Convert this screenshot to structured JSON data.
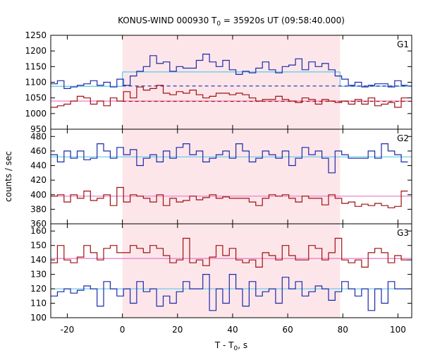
{
  "chart_data": {
    "type": "line",
    "title_main": "KONUS-WIND 000930 T",
    "title_sub": "0",
    "title_rest": " = 35920s UT (09:58:40.000)",
    "xlabel_main": "T - T",
    "xlabel_sub": "0",
    "xlabel_rest": ", s",
    "ylabel": "counts / sec",
    "xlim": [
      -26,
      105
    ],
    "xticks": [
      -20,
      0,
      20,
      40,
      60,
      80,
      100
    ],
    "highlight_interval": [
      0,
      79
    ],
    "colors": {
      "blue": "#1a2aa8",
      "red": "#a01010",
      "cyan": "#5cc8e8",
      "pink": "#e878c8",
      "highlight": "#fde6ea"
    },
    "x_bins": [
      -26,
      -23.6,
      -21.2,
      -18.8,
      -16.4,
      -14,
      -11.6,
      -9.2,
      -6.8,
      -4.4,
      -2,
      0.4,
      2.8,
      5.2,
      7.6,
      10,
      12.4,
      14.8,
      17.2,
      19.6,
      22,
      24.4,
      26.8,
      29.2,
      31.6,
      34,
      36.4,
      38.8,
      41.2,
      43.6,
      46,
      48.4,
      50.8,
      53.2,
      55.6,
      58,
      60.4,
      62.8,
      65.2,
      67.6,
      70,
      72.4,
      74.8,
      77.2,
      79.6,
      82,
      84.4,
      86.8,
      89.2,
      91.6,
      94,
      96.4,
      98.8,
      101.2,
      103.6
    ],
    "panels": [
      {
        "label": "G1",
        "ylim": [
          950,
          1250
        ],
        "yticks": [
          950,
          1000,
          1050,
          1100,
          1150,
          1200,
          1250
        ],
        "series": [
          {
            "color": "blue",
            "values": [
              1095,
              1105,
              1080,
              1085,
              1090,
              1095,
              1105,
              1090,
              1100,
              1085,
              1110,
              1090,
              1120,
              1135,
              1150,
              1185,
              1160,
              1165,
              1135,
              1150,
              1145,
              1145,
              1170,
              1190,
              1165,
              1150,
              1170,
              1140,
              1125,
              1135,
              1130,
              1145,
              1165,
              1140,
              1130,
              1150,
              1155,
              1175,
              1140,
              1165,
              1150,
              1160,
              1140,
              1120,
              1110,
              1090,
              1100,
              1085,
              1090,
              1095,
              1095,
              1085,
              1105,
              1090
            ]
          },
          {
            "color": "red",
            "values": [
              1020,
              1025,
              1030,
              1040,
              1055,
              1050,
              1030,
              1040,
              1025,
              1050,
              1040,
              1070,
              1050,
              1085,
              1075,
              1080,
              1090,
              1065,
              1060,
              1070,
              1065,
              1075,
              1060,
              1050,
              1055,
              1065,
              1065,
              1060,
              1065,
              1060,
              1050,
              1040,
              1045,
              1045,
              1055,
              1045,
              1040,
              1035,
              1050,
              1045,
              1030,
              1045,
              1040,
              1035,
              1040,
              1030,
              1045,
              1030,
              1050,
              1025,
              1030,
              1035,
              1020,
              1050
            ]
          }
        ],
        "levels": [
          {
            "color": "cyan",
            "segments": [
              [
                -26,
                0,
                1087
              ],
              [
                0,
                79,
                1133
              ],
              [
                79,
                105,
                1087
              ]
            ]
          },
          {
            "color": "pink",
            "segments": [
              [
                -26,
                105,
                1040
              ]
            ]
          }
        ],
        "dashed_levels": [
          {
            "color": "blue",
            "from": 0,
            "to": 105,
            "value": 1088
          },
          {
            "color": "red",
            "from": 0,
            "to": 105,
            "value": 1039
          }
        ]
      },
      {
        "label": "G2",
        "ylim": [
          360,
          490
        ],
        "yticks": [
          360,
          380,
          400,
          420,
          440,
          460,
          480
        ],
        "series": [
          {
            "color": "blue",
            "values": [
              455,
              445,
              460,
              450,
              460,
              448,
              450,
              470,
              460,
              450,
              465,
              455,
              462,
              440,
              450,
              455,
              445,
              460,
              450,
              465,
              470,
              455,
              460,
              445,
              450,
              455,
              460,
              450,
              470,
              460,
              445,
              450,
              460,
              455,
              450,
              460,
              440,
              450,
              465,
              455,
              460,
              450,
              430,
              460,
              455,
              450,
              450,
              450,
              460,
              450,
              470,
              460,
              455,
              445
            ]
          },
          {
            "color": "red",
            "values": [
              398,
              400,
              390,
              400,
              395,
              405,
              392,
              395,
              400,
              385,
              410,
              390,
              400,
              398,
              395,
              390,
              400,
              385,
              395,
              390,
              392,
              398,
              393,
              396,
              400,
              395,
              397,
              395,
              395,
              395,
              390,
              385,
              395,
              400,
              398,
              400,
              395,
              390,
              398,
              395,
              395,
              386,
              400,
              395,
              388,
              390,
              384,
              387,
              385,
              388,
              385,
              382,
              384,
              405
            ]
          }
        ],
        "levels": [
          {
            "color": "cyan",
            "segments": [
              [
                -26,
                105,
                452
              ]
            ]
          },
          {
            "color": "pink",
            "segments": [
              [
                -26,
                105,
                398
              ]
            ]
          }
        ],
        "dashed_levels": []
      },
      {
        "label": "G3",
        "ylim": [
          100,
          165
        ],
        "yticks": [
          100,
          110,
          120,
          130,
          140,
          150,
          160
        ],
        "series": [
          {
            "color": "blue",
            "values": [
              115,
              118,
              120,
              117,
              119,
              122,
              120,
              108,
              125,
              120,
              115,
              120,
              110,
              125,
              118,
              120,
              108,
              115,
              110,
              118,
              125,
              120,
              120,
              130,
              105,
              120,
              110,
              130,
              120,
              108,
              125,
              115,
              118,
              120,
              110,
              128,
              120,
              125,
              115,
              118,
              122,
              120,
              112,
              118,
              125,
              120,
              115,
              120,
              105,
              120,
              110,
              125,
              120,
              120
            ]
          },
          {
            "color": "red",
            "values": [
              138,
              150,
              140,
              138,
              142,
              150,
              145,
              140,
              148,
              150,
              145,
              145,
              150,
              148,
              145,
              150,
              148,
              143,
              138,
              140,
              155,
              138,
              140,
              136,
              142,
              150,
              143,
              148,
              140,
              138,
              140,
              135,
              145,
              143,
              140,
              150,
              143,
              140,
              140,
              150,
              148,
              140,
              145,
              155,
              140,
              138,
              140,
              135,
              145,
              148,
              145,
              138,
              143,
              140
            ]
          }
        ],
        "levels": [
          {
            "color": "cyan",
            "segments": [
              [
                -26,
                105,
                120
              ]
            ]
          },
          {
            "color": "pink",
            "segments": [
              [
                -26,
                105,
                141
              ]
            ]
          }
        ],
        "dashed_levels": []
      }
    ]
  }
}
